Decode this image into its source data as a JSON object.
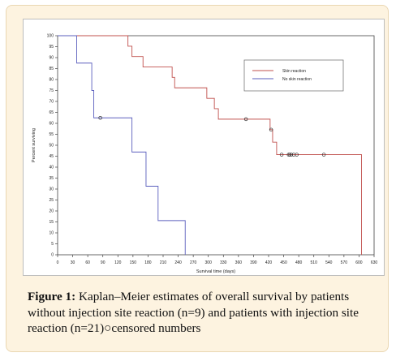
{
  "chart_data": {
    "type": "line",
    "title": "",
    "xlabel": "Survival time (days)",
    "ylabel": "Percent surviving",
    "xlim": [
      0,
      630
    ],
    "ylim": [
      0,
      100
    ],
    "x_ticks": [
      0,
      30,
      60,
      90,
      120,
      150,
      180,
      210,
      240,
      270,
      300,
      330,
      360,
      390,
      420,
      450,
      480,
      510,
      540,
      570,
      600,
      630
    ],
    "y_ticks": [
      0,
      5,
      10,
      15,
      20,
      25,
      30,
      35,
      40,
      45,
      50,
      55,
      60,
      65,
      70,
      75,
      80,
      85,
      90,
      95,
      100
    ],
    "grid": false,
    "legend_position": "top-right",
    "series": [
      {
        "name": "Skin reaction",
        "color": "#c0504d",
        "steps": [
          [
            0,
            100
          ],
          [
            140,
            95.2
          ],
          [
            148,
            90.5
          ],
          [
            170,
            85.7
          ],
          [
            228,
            81
          ],
          [
            233,
            76.2
          ],
          [
            297,
            71.4
          ],
          [
            312,
            66.7
          ],
          [
            320,
            61.9
          ],
          [
            423,
            57.1
          ],
          [
            428,
            51.4
          ],
          [
            436,
            45.7
          ],
          [
            605,
            0
          ]
        ],
        "censored": [
          [
            375,
            61.9
          ],
          [
            425,
            57.1
          ],
          [
            446,
            45.7
          ],
          [
            460,
            45.7
          ],
          [
            462,
            45.7
          ],
          [
            465,
            45.7
          ],
          [
            470,
            45.7
          ],
          [
            476,
            45.7
          ],
          [
            530,
            45.7
          ]
        ]
      },
      {
        "name": "No skin reaction",
        "color": "#5b5fbe",
        "steps": [
          [
            0,
            100
          ],
          [
            38,
            87.5
          ],
          [
            68,
            75
          ],
          [
            72,
            62.5
          ],
          [
            148,
            46.9
          ],
          [
            176,
            31.3
          ],
          [
            200,
            15.6
          ],
          [
            254,
            0
          ]
        ],
        "censored": [
          [
            85,
            62.5
          ]
        ]
      }
    ]
  },
  "caption": {
    "label": "Figure 1:",
    "text": " Kaplan–Meier estimates of overall survival by patients without injection site reaction (n=9) and patients with injection site reaction (n=21)○censored numbers"
  }
}
